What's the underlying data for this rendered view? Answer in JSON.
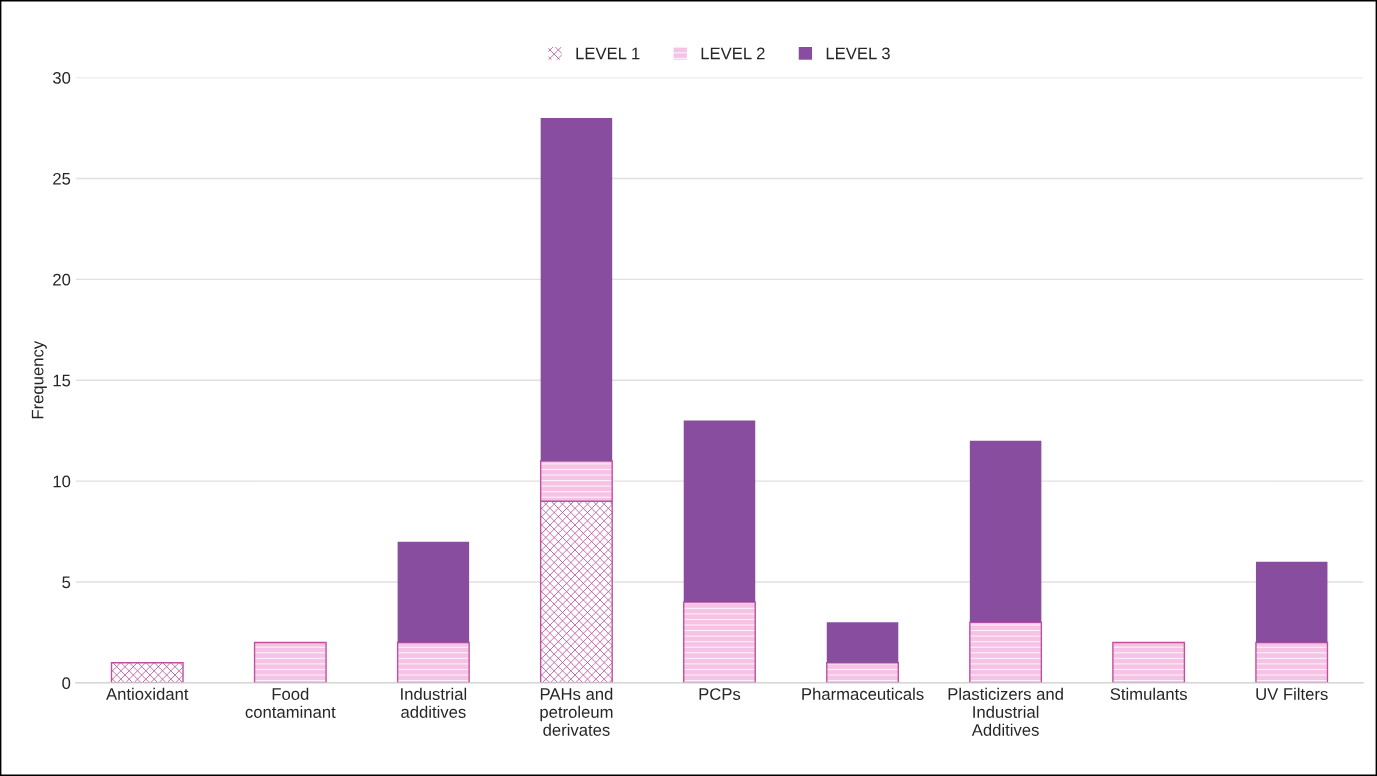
{
  "chart_data": {
    "type": "bar",
    "stacked": true,
    "ylabel": "Frequency",
    "categories": [
      "Antioxidant",
      "Food\ncontaminant",
      "Industrial\nadditives",
      "PAHs and\npetroleum\nderivates",
      "PCPs",
      "Pharmaceuticals",
      "Plasticizers and\nIndustrial\nAdditives",
      "Stimulants",
      "UV Filters"
    ],
    "series": [
      {
        "name": "LEVEL 1",
        "color": "#c0509e",
        "values": [
          1,
          0,
          0,
          9,
          0,
          0,
          0,
          0,
          0
        ]
      },
      {
        "name": "LEVEL 2",
        "color": "#f6c3e6",
        "values": [
          0,
          2,
          2,
          2,
          4,
          1,
          3,
          2,
          2
        ]
      },
      {
        "name": "LEVEL 3",
        "color": "#894d9f",
        "values": [
          0,
          0,
          5,
          17,
          9,
          2,
          9,
          0,
          4
        ]
      }
    ],
    "ylim": [
      0,
      30
    ],
    "yticks": [
      0,
      5,
      10,
      15,
      20,
      25,
      30
    ],
    "grid": "y",
    "legend": "top"
  }
}
